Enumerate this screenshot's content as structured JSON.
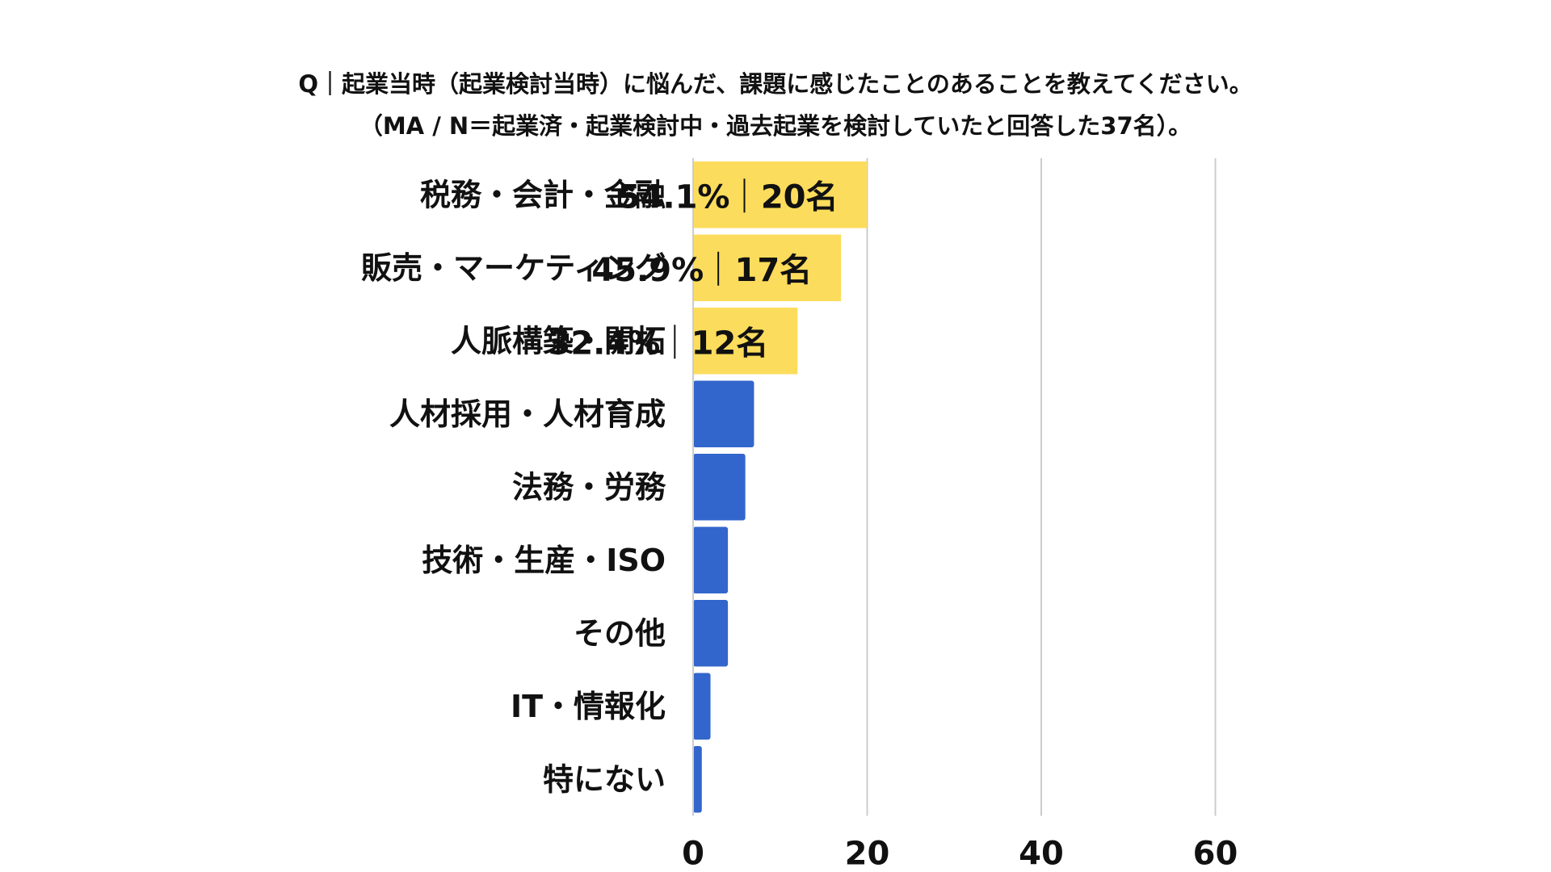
{
  "chart_data": {
    "type": "bar",
    "orientation": "horizontal",
    "title": "Q｜起業当時（起業検討当時）に悩んだ、課題に感じたことのあることを教えてください。",
    "subtitle": "（MA / N＝起業済・起業検討中・過去起業を検討していたと回答した37名）。",
    "categories": [
      "税務・会計・金融",
      "販売・マーケティング",
      "人脈構築・開拓",
      "人材採用・人材育成",
      "法務・労務",
      "技術・生産・ISO",
      "その他",
      "IT・情報化",
      "特にない"
    ],
    "values": [
      20,
      17,
      12,
      7,
      6,
      4,
      4,
      2,
      1
    ],
    "data_labels": [
      {
        "percent": "54.1%",
        "count": "20名"
      },
      {
        "percent": "45.9%",
        "count": "17名"
      },
      {
        "percent": "32.4%",
        "count": "12名"
      },
      null,
      null,
      null,
      null,
      null,
      null
    ],
    "highlight_count": 3,
    "xlim": [
      0,
      60
    ],
    "xticks": [
      0,
      20,
      40,
      60
    ],
    "xtick_labels": [
      "0",
      "20",
      "40",
      "60"
    ],
    "xlabel": "",
    "ylabel": "",
    "grid": true,
    "legend": "none",
    "colors": {
      "highlight": "#FCDC5C",
      "default": "#3366CC",
      "grid": "#CCCCCC",
      "text": "#111111"
    }
  }
}
